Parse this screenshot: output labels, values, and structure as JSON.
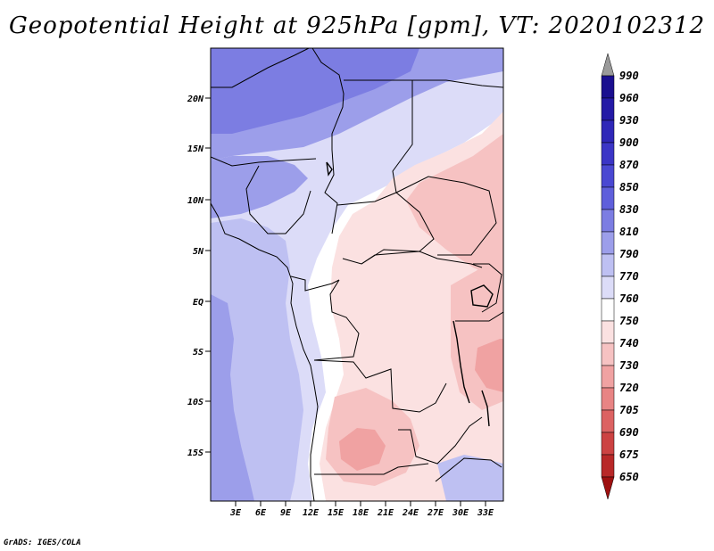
{
  "title": "Geopotential Height at 925hPa [gpm], VT: 2020102312",
  "footer": "GrADS: IGES/COLA",
  "map": {
    "lat_ticks": [
      "20N",
      "15N",
      "10N",
      "5N",
      "EQ",
      "5S",
      "10S",
      "15S"
    ],
    "lon_ticks": [
      "3E",
      "6E",
      "9E",
      "12E",
      "15E",
      "18E",
      "21E",
      "24E",
      "27E",
      "30E",
      "33E"
    ]
  },
  "colorbar": {
    "levels": [
      "990",
      "960",
      "930",
      "900",
      "870",
      "850",
      "830",
      "810",
      "790",
      "770",
      "760",
      "750",
      "740",
      "730",
      "720",
      "705",
      "690",
      "675",
      "650"
    ],
    "colors": [
      "#9a9a9a",
      "#1a0f8f",
      "#241aa6",
      "#2f27b8",
      "#3b35c6",
      "#4a48d2",
      "#5f5fdb",
      "#7c7de2",
      "#9c9eea",
      "#bec0f2",
      "#dcdcf8",
      "#ffffff",
      "#fbe1e1",
      "#f6c2c2",
      "#f0a2a2",
      "#e88484",
      "#dc6262",
      "#cc4242",
      "#b82828",
      "#9e1010"
    ]
  }
}
